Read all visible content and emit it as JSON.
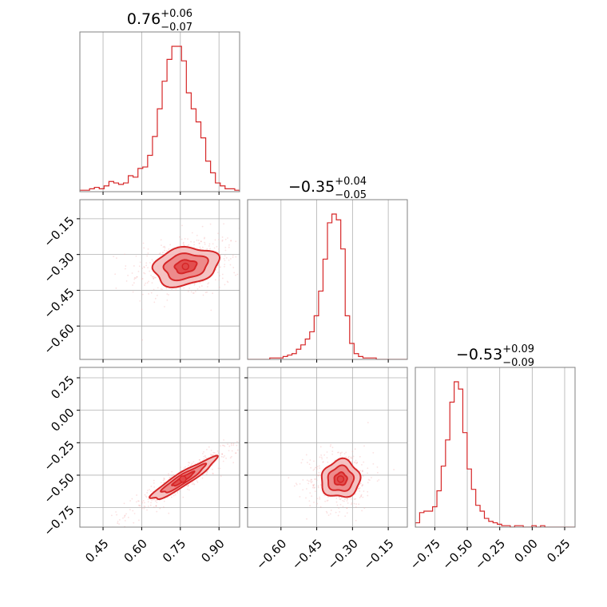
{
  "colors": {
    "series": "#d62728",
    "fill_light": "#f4bcbc",
    "fill_mid": "#ec8585",
    "fill_dark": "#e04848",
    "scatter": "#f3a9a9"
  },
  "chart_data": {
    "type": "corner",
    "parameters": [
      {
        "title_value": "0.76",
        "title_plus": "+0.06",
        "title_minus": "−0.07",
        "median": 0.76,
        "lower_error": 0.07,
        "upper_error": 0.06,
        "range": [
          0.36,
          0.98
        ],
        "ticks": [
          0.45,
          0.6,
          0.75,
          0.9
        ],
        "tick_labels": [
          "0.45",
          "0.60",
          "0.75",
          "0.90"
        ],
        "hist_counts": [
          1,
          1,
          2,
          3,
          2,
          4,
          7,
          6,
          5,
          6,
          11,
          10,
          16,
          17,
          25,
          38,
          57,
          76,
          91,
          100,
          100,
          90,
          68,
          57,
          48,
          37,
          21,
          13,
          6,
          4,
          2,
          2,
          1
        ],
        "hist_range": [
          0.36,
          0.98
        ]
      },
      {
        "title_value": "−0.35",
        "title_plus": "+0.04",
        "title_minus": "−0.05",
        "median": -0.35,
        "lower_error": 0.05,
        "upper_error": 0.04,
        "range": [
          -0.74,
          -0.07
        ],
        "ticks": [
          -0.6,
          -0.45,
          -0.3,
          -0.15
        ],
        "tick_labels": [
          "−0.60",
          "−0.45",
          "−0.30",
          "−0.15"
        ],
        "hist_counts": [
          0,
          0,
          0,
          0,
          0,
          1,
          1,
          1,
          2,
          3,
          4,
          7,
          10,
          14,
          19,
          30,
          47,
          69,
          94,
          100,
          96,
          76,
          30,
          11,
          4,
          2,
          1,
          1,
          1,
          0,
          0,
          0,
          0,
          0,
          0,
          0
        ],
        "hist_range": [
          -0.74,
          -0.07
        ]
      },
      {
        "title_value": "−0.53",
        "title_plus": "+0.09",
        "title_minus": "−0.09",
        "median": -0.53,
        "lower_error": 0.09,
        "upper_error": 0.09,
        "range": [
          -0.9,
          0.33
        ],
        "ticks": [
          -0.75,
          -0.5,
          -0.25,
          0.0,
          0.25
        ],
        "tick_labels": [
          "−0.75",
          "−0.50",
          "−0.25",
          "0.00",
          "0.25"
        ],
        "hist_counts": [
          3,
          10,
          11,
          11,
          14,
          25,
          42,
          60,
          86,
          100,
          95,
          65,
          40,
          26,
          15,
          11,
          6,
          4,
          3,
          2,
          1,
          1,
          0,
          1,
          1,
          0,
          0,
          1,
          0,
          1,
          0,
          0,
          0,
          0,
          0,
          0,
          0
        ],
        "hist_range": [
          -0.9,
          0.33
        ]
      }
    ],
    "pairs": [
      {
        "x_param": 0,
        "y_param": 1,
        "mean": [
          0.77,
          -0.35
        ],
        "std": [
          0.07,
          0.045
        ],
        "correlation": 0.2,
        "levels_sigma": [
          0.6,
          1.2,
          1.8
        ]
      },
      {
        "x_param": 0,
        "y_param": 2,
        "mean": [
          0.76,
          -0.53
        ],
        "std": [
          0.07,
          0.09
        ],
        "correlation": 0.93,
        "levels_sigma": [
          0.6,
          1.2,
          1.8
        ]
      },
      {
        "x_param": 1,
        "y_param": 2,
        "mean": [
          -0.35,
          -0.53
        ],
        "std": [
          0.045,
          0.08
        ],
        "correlation": 0.05,
        "levels_sigma": [
          0.6,
          1.2,
          1.8
        ]
      }
    ],
    "grid": true,
    "xlabel": "",
    "ylabel": ""
  }
}
